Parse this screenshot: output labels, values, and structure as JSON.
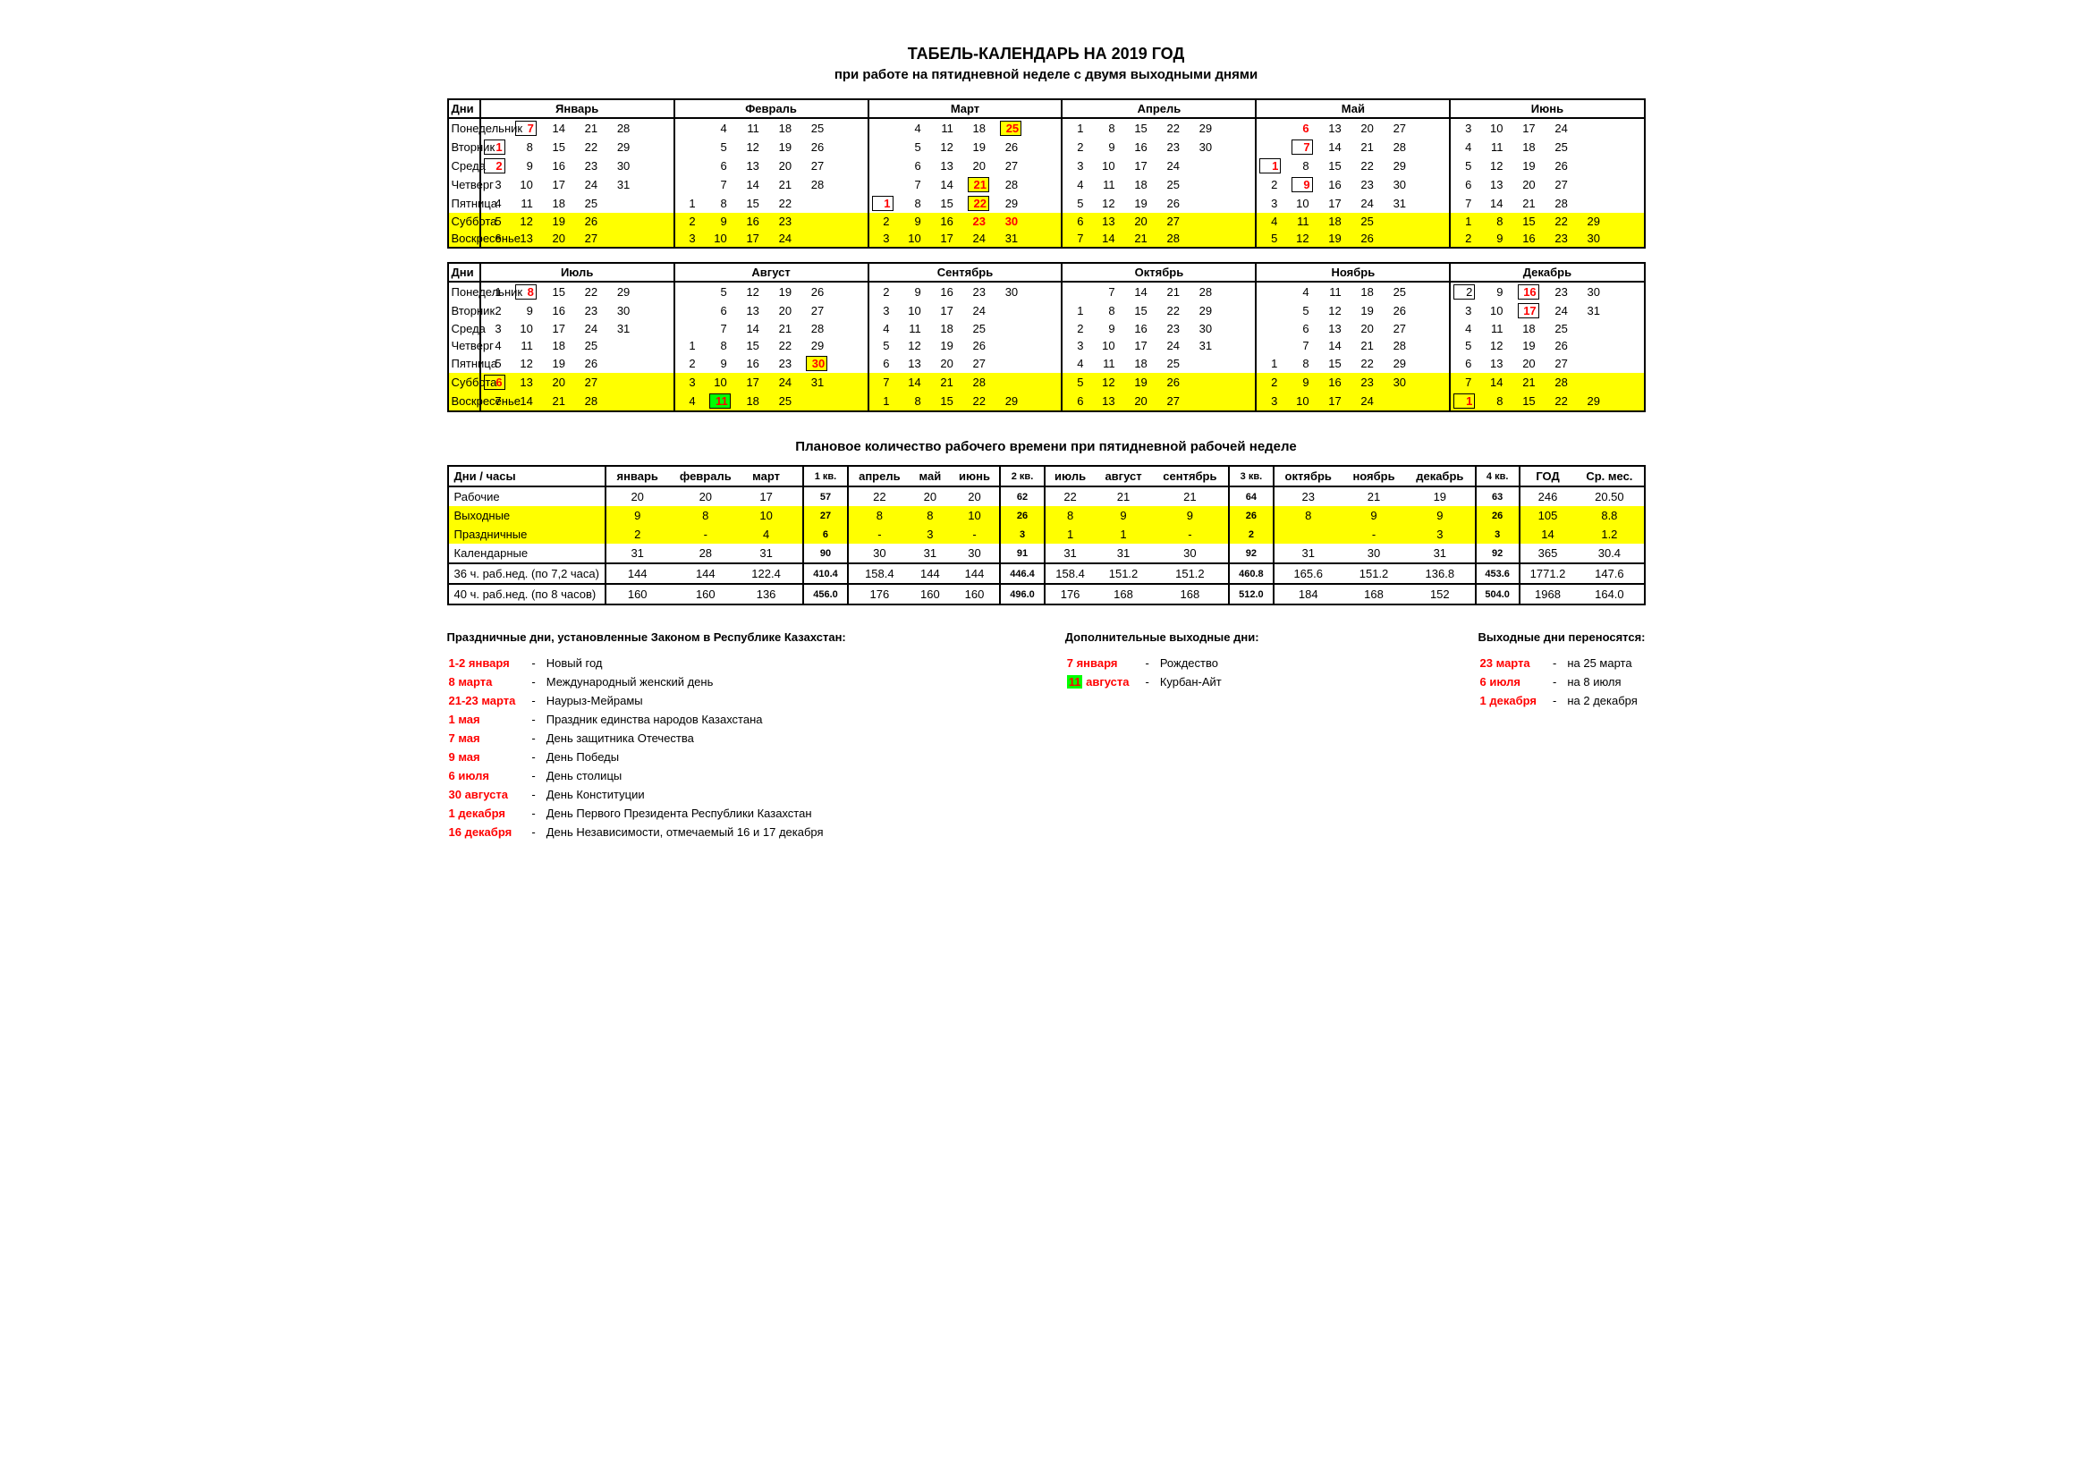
{
  "title": "ТАБЕЛЬ-КАЛЕНДАРЬ НА 2019 ГОД",
  "subtitle": "при работе на пятидневной неделе с двумя выходными днями",
  "sumtitle": "Плановое количество рабочего времени при пятидневной рабочей неделе",
  "day_labels": [
    "Дни",
    "Понедельник",
    "Вторник",
    "Среда",
    "Четверг",
    "Пятница",
    "Суббота",
    "Воскресенье"
  ],
  "weekend_rows": [
    6,
    7
  ],
  "half1": {
    "months": [
      "Январь",
      "Февраль",
      "Март",
      "Апрель",
      "Май",
      "Июнь"
    ],
    "grid": [
      [
        [
          "",
          "7",
          "14",
          "21",
          "28",
          ""
        ],
        [
          "",
          "4",
          "11",
          "18",
          "25",
          ""
        ],
        [
          "",
          "4",
          "11",
          "18",
          "25",
          ""
        ],
        [
          "1",
          "8",
          "15",
          "22",
          "29"
        ],
        [
          "",
          "6",
          "13",
          "20",
          "27",
          ""
        ],
        [
          "3",
          "10",
          "17",
          "24",
          ""
        ]
      ],
      [
        [
          "1",
          "8",
          "15",
          "22",
          "29",
          ""
        ],
        [
          "",
          "5",
          "12",
          "19",
          "26",
          ""
        ],
        [
          "",
          "5",
          "12",
          "19",
          "26",
          ""
        ],
        [
          "2",
          "9",
          "16",
          "23",
          "30"
        ],
        [
          "",
          "7",
          "14",
          "21",
          "28",
          ""
        ],
        [
          "4",
          "11",
          "18",
          "25",
          ""
        ]
      ],
      [
        [
          "2",
          "9",
          "16",
          "23",
          "30",
          ""
        ],
        [
          "",
          "6",
          "13",
          "20",
          "27",
          ""
        ],
        [
          "",
          "6",
          "13",
          "20",
          "27",
          ""
        ],
        [
          "3",
          "10",
          "17",
          "24",
          ""
        ],
        [
          "1",
          "8",
          "15",
          "22",
          "29",
          ""
        ],
        [
          "5",
          "12",
          "19",
          "26",
          ""
        ]
      ],
      [
        [
          "3",
          "10",
          "17",
          "24",
          "31",
          ""
        ],
        [
          "",
          "7",
          "14",
          "21",
          "28",
          ""
        ],
        [
          "",
          "7",
          "14",
          "21",
          "28",
          ""
        ],
        [
          "4",
          "11",
          "18",
          "25",
          ""
        ],
        [
          "2",
          "9",
          "16",
          "23",
          "30",
          ""
        ],
        [
          "6",
          "13",
          "20",
          "27",
          ""
        ]
      ],
      [
        [
          "4",
          "11",
          "18",
          "25",
          "",
          ""
        ],
        [
          "1",
          "8",
          "15",
          "22",
          "",
          ""
        ],
        [
          "1",
          "8",
          "15",
          "22",
          "29",
          ""
        ],
        [
          "5",
          "12",
          "19",
          "26",
          ""
        ],
        [
          "3",
          "10",
          "17",
          "24",
          "31",
          ""
        ],
        [
          "7",
          "14",
          "21",
          "28",
          ""
        ]
      ],
      [
        [
          "5",
          "12",
          "19",
          "26",
          "",
          ""
        ],
        [
          "2",
          "9",
          "16",
          "23",
          "",
          ""
        ],
        [
          "2",
          "9",
          "16",
          "23",
          "30",
          ""
        ],
        [
          "6",
          "13",
          "20",
          "27",
          ""
        ],
        [
          "4",
          "11",
          "18",
          "25",
          "",
          ""
        ],
        [
          "1",
          "8",
          "15",
          "22",
          "29"
        ]
      ],
      [
        [
          "6",
          "13",
          "20",
          "27",
          "",
          ""
        ],
        [
          "3",
          "10",
          "17",
          "24",
          "",
          ""
        ],
        [
          "3",
          "10",
          "17",
          "24",
          "31",
          ""
        ],
        [
          "7",
          "14",
          "21",
          "28",
          ""
        ],
        [
          "5",
          "12",
          "19",
          "26",
          "",
          ""
        ],
        [
          "2",
          "9",
          "16",
          "23",
          "30"
        ]
      ]
    ],
    "red": {
      "0": {
        "0": [
          1
        ],
        "2": [
          4
        ],
        "4": [
          1
        ]
      },
      "1": {
        "0": [
          0
        ],
        "4": [
          1
        ]
      },
      "2": {
        "0": [
          0
        ],
        "4": [
          0
        ]
      },
      "3": {
        "2": [
          3
        ],
        "4": [
          1
        ]
      },
      "4": {
        "2": [
          0,
          3
        ]
      },
      "5": {
        "2": [
          3,
          4
        ]
      },
      "6": {}
    },
    "boxed": {
      "0": {
        "0": [
          1
        ],
        "2": [
          4
        ]
      },
      "1": {
        "0": [
          0
        ],
        "4": [
          1
        ]
      },
      "2": {
        "0": [
          0
        ],
        "4": [
          0
        ]
      },
      "3": {
        "2": [
          3
        ],
        "4": [
          1
        ]
      },
      "4": {
        "2": [
          0,
          3
        ]
      },
      "5": {},
      "6": {}
    },
    "hl": {
      "0": {
        "2": [
          4
        ]
      },
      "3": {
        "2": [
          3
        ]
      },
      "4": {
        "2": [
          3
        ]
      }
    }
  },
  "half2": {
    "months": [
      "Июль",
      "Август",
      "Сентябрь",
      "Октябрь",
      "Ноябрь",
      "Декабрь"
    ],
    "grid": [
      [
        [
          "1",
          "8",
          "15",
          "22",
          "29"
        ],
        [
          "",
          "5",
          "12",
          "19",
          "26",
          ""
        ],
        [
          "2",
          "9",
          "16",
          "23",
          "30"
        ],
        [
          "",
          "7",
          "14",
          "21",
          "28"
        ],
        [
          "",
          "4",
          "11",
          "18",
          "25",
          ""
        ],
        [
          "2",
          "9",
          "16",
          "23",
          "30"
        ]
      ],
      [
        [
          "2",
          "9",
          "16",
          "23",
          "30"
        ],
        [
          "",
          "6",
          "13",
          "20",
          "27",
          ""
        ],
        [
          "3",
          "10",
          "17",
          "24",
          ""
        ],
        [
          "1",
          "8",
          "15",
          "22",
          "29"
        ],
        [
          "",
          "5",
          "12",
          "19",
          "26",
          ""
        ],
        [
          "3",
          "10",
          "17",
          "24",
          "31"
        ]
      ],
      [
        [
          "3",
          "10",
          "17",
          "24",
          "31"
        ],
        [
          "",
          "7",
          "14",
          "21",
          "28",
          ""
        ],
        [
          "4",
          "11",
          "18",
          "25",
          ""
        ],
        [
          "2",
          "9",
          "16",
          "23",
          "30"
        ],
        [
          "",
          "6",
          "13",
          "20",
          "27",
          ""
        ],
        [
          "4",
          "11",
          "18",
          "25",
          ""
        ]
      ],
      [
        [
          "4",
          "11",
          "18",
          "25",
          ""
        ],
        [
          "1",
          "8",
          "15",
          "22",
          "29",
          ""
        ],
        [
          "5",
          "12",
          "19",
          "26",
          ""
        ],
        [
          "3",
          "10",
          "17",
          "24",
          "31"
        ],
        [
          "",
          "7",
          "14",
          "21",
          "28",
          ""
        ],
        [
          "5",
          "12",
          "19",
          "26",
          ""
        ]
      ],
      [
        [
          "5",
          "12",
          "19",
          "26",
          ""
        ],
        [
          "2",
          "9",
          "16",
          "23",
          "30",
          ""
        ],
        [
          "6",
          "13",
          "20",
          "27",
          ""
        ],
        [
          "4",
          "11",
          "18",
          "25",
          ""
        ],
        [
          "1",
          "8",
          "15",
          "22",
          "29",
          ""
        ],
        [
          "6",
          "13",
          "20",
          "27",
          ""
        ]
      ],
      [
        [
          "6",
          "13",
          "20",
          "27",
          ""
        ],
        [
          "3",
          "10",
          "17",
          "24",
          "31",
          ""
        ],
        [
          "7",
          "14",
          "21",
          "28",
          ""
        ],
        [
          "5",
          "12",
          "19",
          "26",
          ""
        ],
        [
          "2",
          "9",
          "16",
          "23",
          "30",
          ""
        ],
        [
          "7",
          "14",
          "21",
          "28",
          ""
        ]
      ],
      [
        [
          "7",
          "14",
          "21",
          "28",
          ""
        ],
        [
          "4",
          "11",
          "18",
          "25",
          "",
          ""
        ],
        [
          "1",
          "8",
          "15",
          "22",
          "29",
          ""
        ],
        [
          "6",
          "13",
          "20",
          "27",
          ""
        ],
        [
          "3",
          "10",
          "17",
          "24",
          "",
          ""
        ],
        [
          "1",
          "8",
          "15",
          "22",
          "29"
        ]
      ]
    ],
    "red": {
      "0": {
        "0": [
          1
        ],
        "5": [
          2
        ]
      },
      "1": {
        "5": [
          2
        ]
      },
      "4": {
        "1": [
          4
        ]
      },
      "5": {
        "0": [
          0
        ]
      },
      "6": {
        "1": [
          1
        ],
        "5": [
          0
        ]
      }
    },
    "boxed": {
      "0": {
        "0": [
          1
        ],
        "5": [
          0,
          2
        ]
      },
      "1": {
        "5": [
          2
        ]
      },
      "4": {
        "1": [
          4
        ]
      },
      "5": {
        "0": [
          0
        ]
      },
      "6": {
        "1": [
          1
        ],
        "5": [
          0
        ]
      }
    },
    "hl": {
      "4": {
        "1": [
          4
        ]
      }
    },
    "green": {
      "6": {
        "1": [
          1
        ]
      }
    }
  },
  "summary": {
    "header": [
      "Дни / часы",
      "январь",
      "февраль",
      "март",
      "",
      "1 кв.",
      "апрель",
      "май",
      "июнь",
      "2 кв.",
      "июль",
      "август",
      "сентябрь",
      "3 кв.",
      "октябрь",
      "ноябрь",
      "декабрь",
      "4 кв.",
      "ГОД",
      "Ср. мес."
    ],
    "rows": [
      {
        "lbl": "Рабочие",
        "v": [
          "20",
          "20",
          "17",
          "",
          "57",
          "22",
          "20",
          "20",
          "62",
          "22",
          "21",
          "21",
          "64",
          "23",
          "21",
          "19",
          "63",
          "246",
          "20.50"
        ]
      },
      {
        "lbl": "Выходные",
        "yellow": true,
        "v": [
          "9",
          "8",
          "10",
          "",
          "27",
          "8",
          "8",
          "10",
          "26",
          "8",
          "9",
          "9",
          "26",
          "8",
          "9",
          "9",
          "26",
          "105",
          "8.8"
        ]
      },
      {
        "lbl": "Праздничные",
        "yellow": true,
        "v": [
          "2",
          "-",
          "4",
          "",
          "6",
          "-",
          "3",
          "-",
          "3",
          "1",
          "1",
          "-",
          "2",
          "",
          "-",
          "3",
          "3",
          "14",
          "1.2"
        ]
      },
      {
        "lbl": "Календарные",
        "bordB": true,
        "v": [
          "31",
          "28",
          "31",
          "",
          "90",
          "30",
          "31",
          "30",
          "91",
          "31",
          "31",
          "30",
          "92",
          "31",
          "30",
          "31",
          "92",
          "365",
          "30.4"
        ]
      },
      {
        "lbl": "36 ч. раб.нед. (по 7,2 часа)",
        "bordB": true,
        "v": [
          "144",
          "144",
          "122.4",
          "",
          "410.4",
          "158.4",
          "144",
          "144",
          "446.4",
          "158.4",
          "151.2",
          "151.2",
          "460.8",
          "165.6",
          "151.2",
          "136.8",
          "453.6",
          "1771.2",
          "147.6"
        ]
      },
      {
        "lbl": "40 ч. раб.нед. (по 8 часов)",
        "bordB": true,
        "v": [
          "160",
          "160",
          "136",
          "",
          "456.0",
          "176",
          "160",
          "160",
          "496.0",
          "176",
          "168",
          "168",
          "512.0",
          "184",
          "168",
          "152",
          "504.0",
          "1968",
          "164.0"
        ]
      }
    ],
    "q_cols": [
      5,
      9,
      13,
      17
    ],
    "sep_before": [
      1,
      5,
      6,
      9,
      10,
      13,
      14,
      17,
      18
    ]
  },
  "holidays": {
    "title": "Праздничные дни, установленные Законом в Республике Казахстан:",
    "items": [
      {
        "d": "1-2 января",
        "t": "Новый год"
      },
      {
        "d": "8 марта",
        "t": "Международный женский день"
      },
      {
        "d": "21-23 марта",
        "t": "Наурыз-Мейрамы"
      },
      {
        "d": "1 мая",
        "t": "Праздник единства народов Казахстана"
      },
      {
        "d": "7 мая",
        "t": "День защитника Отечества"
      },
      {
        "d": "9 мая",
        "t": "День Победы"
      },
      {
        "d": "6 июля",
        "t": "День столицы"
      },
      {
        "d": "30 августа",
        "t": "День Конституции"
      },
      {
        "d": "1 декабря",
        "t": "День Первого Президента Республики Казахстан"
      },
      {
        "d": "16 декабря",
        "t": "День Независимости,  отмечаемый 16 и 17 декабря"
      }
    ]
  },
  "extra": {
    "title": "Дополнительные выходные дни:",
    "items": [
      {
        "d": "7 января",
        "t": "Рождество"
      },
      {
        "d": "11 августа",
        "t": "Курбан-Айт",
        "green": true
      }
    ]
  },
  "moved": {
    "title": "Выходные дни переносятся:",
    "items": [
      {
        "d": "23 марта",
        "t": "на 25 марта"
      },
      {
        "d": "6 июля",
        "t": "на 8 июля"
      },
      {
        "d": "1 декабря",
        "t": "на 2 декабря"
      }
    ]
  }
}
